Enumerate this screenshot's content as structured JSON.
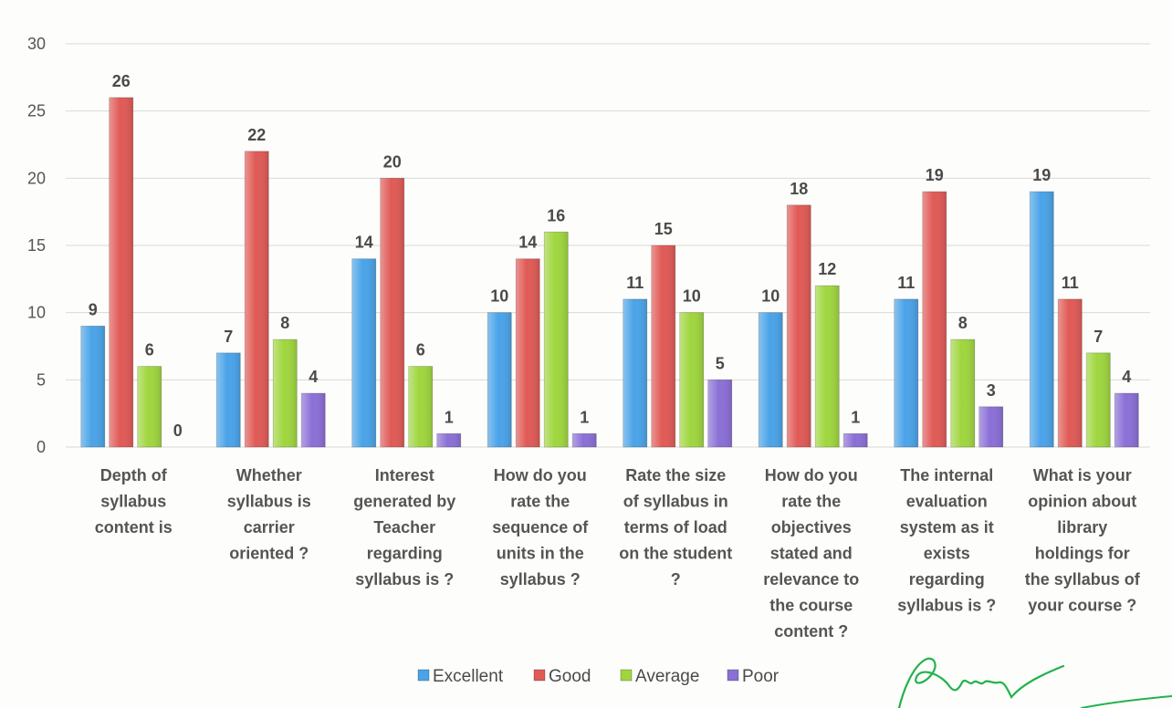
{
  "chart_data": {
    "type": "bar",
    "title": "",
    "xlabel": "",
    "ylabel": "",
    "ylim": [
      0,
      30
    ],
    "yticks": [
      0,
      5,
      10,
      15,
      20,
      25,
      30
    ],
    "grid": true,
    "legend_position": "bottom",
    "categories": [
      [
        "Depth of",
        "syllabus",
        "content is"
      ],
      [
        "Whether",
        "syllabus is",
        "carrier",
        "oriented ?"
      ],
      [
        "Interest",
        "generated by",
        "Teacher",
        "regarding",
        "syllabus is ?"
      ],
      [
        "How do you",
        "rate the",
        "sequence of",
        "units in the",
        "syllabus ?"
      ],
      [
        "Rate the size",
        "of syllabus in",
        "terms of load",
        "on the student",
        "?"
      ],
      [
        "How do you",
        "rate the",
        "objectives",
        "stated and",
        "relevance to",
        "the course",
        "content ?"
      ],
      [
        "The internal",
        "evaluation",
        "system as it",
        "exists",
        "regarding",
        "syllabus is ?"
      ],
      [
        "What is your",
        "opinion about",
        "library",
        "holdings for",
        "the syllabus of",
        "your course ?"
      ]
    ],
    "series": [
      {
        "name": "Excellent",
        "color": "#4aa3e8",
        "values": [
          9,
          7,
          14,
          10,
          11,
          10,
          11,
          19
        ]
      },
      {
        "name": "Good",
        "color": "#e05a56",
        "values": [
          26,
          22,
          20,
          14,
          15,
          18,
          19,
          11
        ]
      },
      {
        "name": "Average",
        "color": "#9fd63e",
        "values": [
          6,
          8,
          6,
          16,
          10,
          12,
          8,
          7
        ]
      },
      {
        "name": "Poor",
        "color": "#8a6fd6",
        "values": [
          0,
          4,
          1,
          1,
          5,
          1,
          3,
          4
        ]
      }
    ]
  },
  "signature": {
    "text": "Signature",
    "color": "#22b24c"
  }
}
